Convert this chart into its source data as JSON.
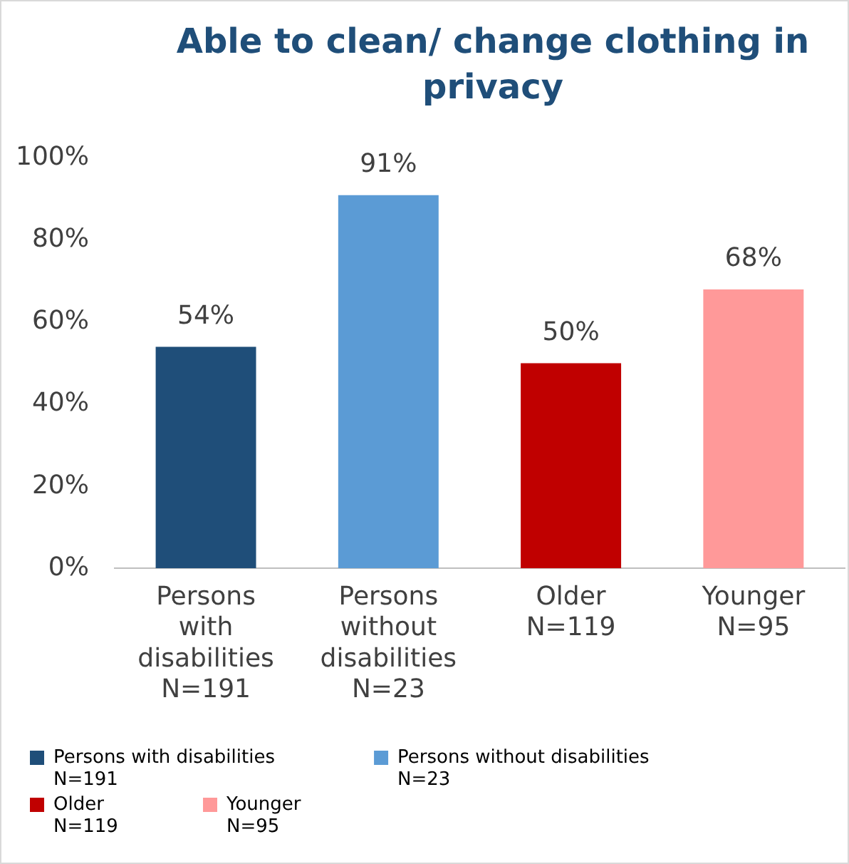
{
  "chart_data": {
    "type": "bar",
    "title": "Able to clean/ change clothing in privacy",
    "categories": [
      "Persons with disabilities\nN=191",
      "Persons without disabilities\nN=23",
      "Older\nN=119",
      "Younger\nN=95"
    ],
    "series": [
      {
        "name": "Persons with disabilities\nN=191",
        "color": "#1f4e79",
        "values": [
          54,
          null,
          null,
          null
        ],
        "value_labels": [
          "54%",
          null,
          null,
          null
        ]
      },
      {
        "name": "Persons without disabilities\nN=23",
        "color": "#5b9bd5",
        "values": [
          null,
          91,
          null,
          null
        ],
        "value_labels": [
          null,
          "91%",
          null,
          null
        ]
      },
      {
        "name": "Older\nN=119",
        "color": "#c00000",
        "values": [
          null,
          null,
          50,
          null
        ],
        "value_labels": [
          null,
          null,
          "50%",
          null
        ]
      },
      {
        "name": "Younger\nN=95",
        "color": "#ff9999",
        "values": [
          null,
          null,
          null,
          68
        ],
        "value_labels": [
          null,
          null,
          null,
          "68%"
        ]
      }
    ],
    "ylim": [
      0,
      100
    ],
    "yticks": [
      {
        "value": 0,
        "label": "0%"
      },
      {
        "value": 20,
        "label": "20%"
      },
      {
        "value": 40,
        "label": "40%"
      },
      {
        "value": 60,
        "label": "60%"
      },
      {
        "value": 80,
        "label": "80%"
      },
      {
        "value": 100,
        "label": "100%"
      }
    ],
    "grid": false,
    "legend": "bottom"
  }
}
